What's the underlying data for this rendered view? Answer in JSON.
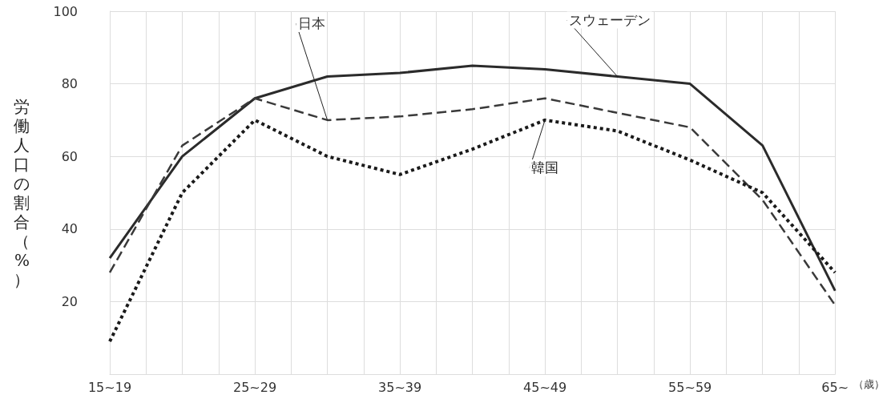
{
  "chart_data": {
    "type": "line",
    "ylabel": "労働人口の割合（%）",
    "xlabel": "（歳）",
    "categories": [
      "15~19",
      null,
      "25~29",
      null,
      "35~39",
      null,
      "45~49",
      null,
      "55~59",
      null,
      "65~"
    ],
    "ylim": [
      0,
      100
    ],
    "yticks": [
      {
        "value": 0,
        "label": null
      },
      20,
      40,
      60,
      80,
      100
    ],
    "grid": true,
    "legend": false,
    "marker": "none",
    "series": [
      {
        "name": "スウェーデン",
        "color": "#2b2b2b",
        "line_style": "solid",
        "values": [
          32,
          60,
          76,
          82,
          83,
          85,
          84,
          82,
          80,
          63,
          23
        ]
      },
      {
        "name": "日本",
        "color": "#3a3a3a",
        "line_style": "dashed",
        "values": [
          28,
          63,
          76,
          70,
          71,
          73,
          76,
          72,
          68,
          48,
          19
        ]
      },
      {
        "name": "韓国",
        "color": "#1a1a1a",
        "line_style": "dotted",
        "values": [
          9,
          50,
          70,
          60,
          55,
          62,
          70,
          67,
          59,
          50,
          28
        ]
      }
    ]
  }
}
